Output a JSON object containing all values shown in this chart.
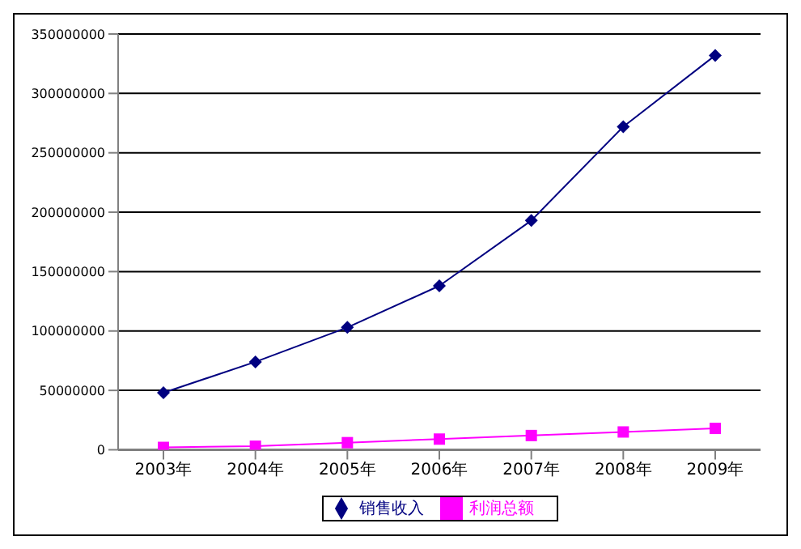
{
  "chart_data": {
    "type": "line",
    "categories": [
      "2003年",
      "2004年",
      "2005年",
      "2006年",
      "2007年",
      "2008年",
      "2009年"
    ],
    "series": [
      {
        "name": "销售收入",
        "color": "#000080",
        "marker": "diamond",
        "values": [
          48000000,
          74000000,
          103000000,
          138000000,
          193000000,
          272000000,
          332000000
        ]
      },
      {
        "name": "利润总额",
        "color": "#ff00ff",
        "marker": "square",
        "values": [
          2000000,
          3000000,
          6000000,
          9000000,
          12000000,
          15000000,
          18000000
        ]
      }
    ],
    "ylim": [
      0,
      350000000
    ],
    "yticks": [
      0,
      50000000,
      100000000,
      150000000,
      200000000,
      250000000,
      300000000,
      350000000
    ],
    "grid": "y",
    "legend": "bottom"
  }
}
